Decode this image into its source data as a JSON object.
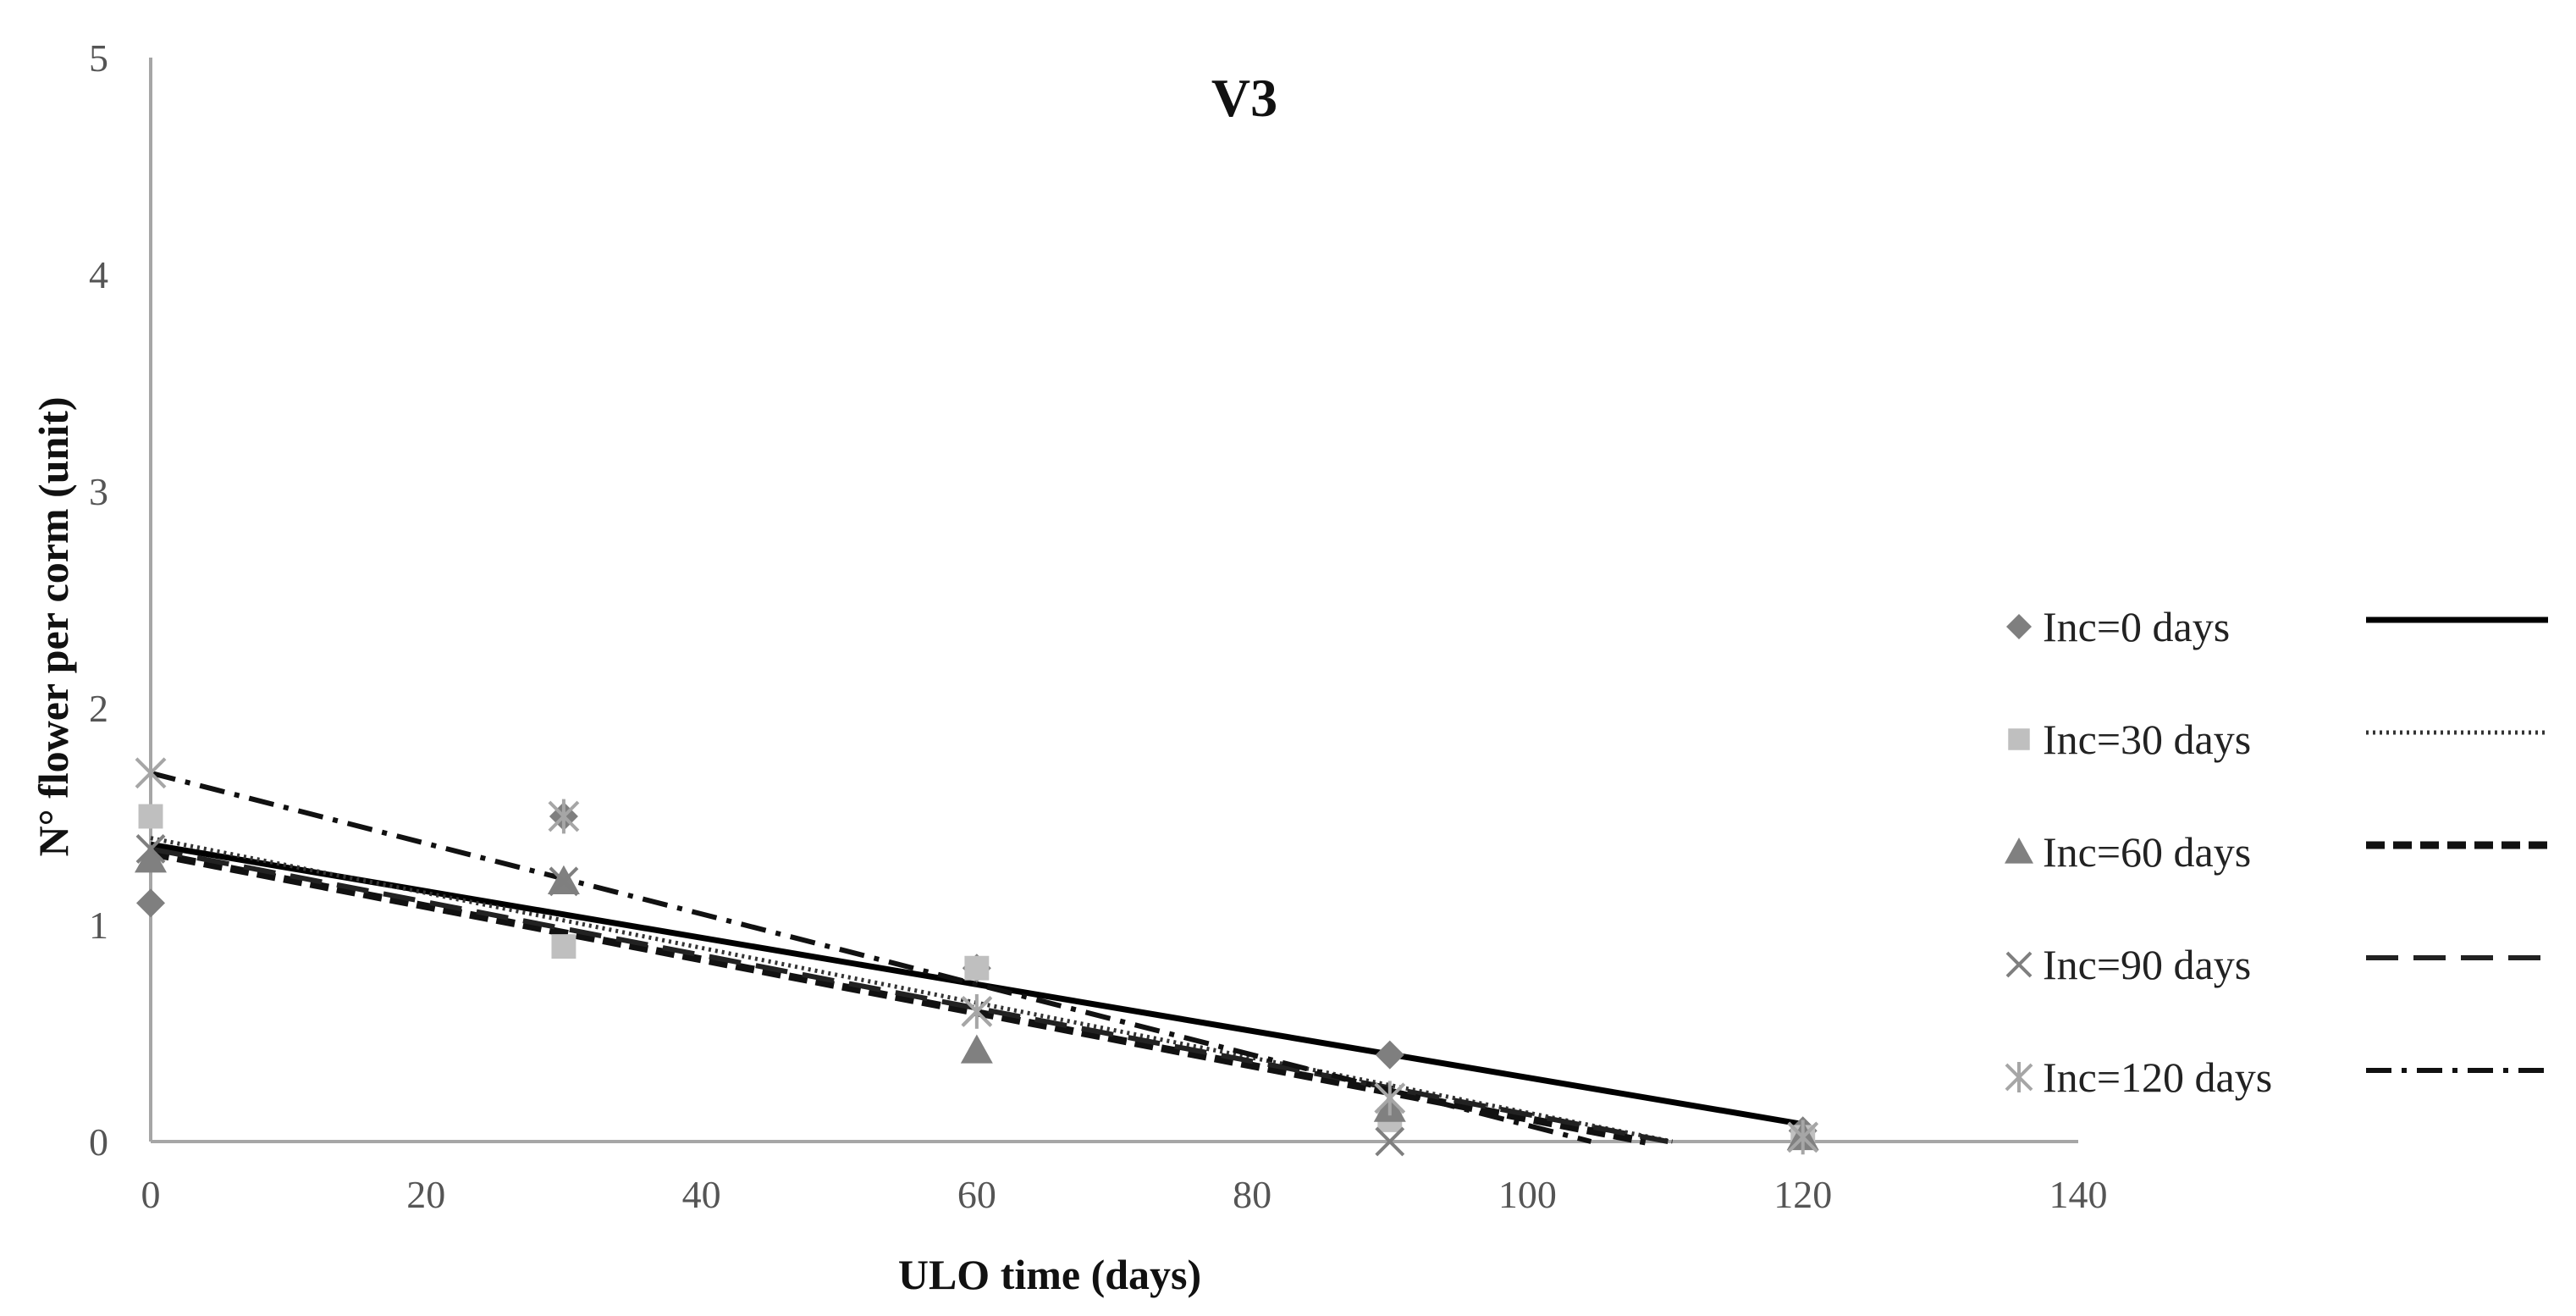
{
  "chart_data": {
    "type": "scatter",
    "title": "V3",
    "xlabel": "ULO time (days)",
    "ylabel": "N° flower per corm (unit)",
    "xlim": [
      0,
      140
    ],
    "ylim": [
      0,
      5
    ],
    "x_ticks": [
      "0",
      "20",
      "40",
      "60",
      "80",
      "100",
      "120",
      "140"
    ],
    "y_ticks": [
      "0",
      "1",
      "2",
      "3",
      "4",
      "5"
    ],
    "grid": false,
    "legend_position": "right",
    "x": [
      0,
      30,
      60,
      90,
      120
    ],
    "series": [
      {
        "name": "Inc=0 days",
        "marker": "diamond",
        "marker_color": "#7f7f7f",
        "line_style": "solid",
        "values": [
          1.1,
          1.5,
          0.8,
          0.4,
          0.05
        ],
        "trendline": [
          1.37,
          0.08
        ]
      },
      {
        "name": "Inc=30 days",
        "marker": "square",
        "marker_color": "#bfbfbf",
        "line_style": "dotted",
        "values": [
          1.5,
          0.9,
          0.8,
          0.1,
          0.02
        ],
        "trendline": [
          1.4,
          -0.12
        ]
      },
      {
        "name": "Inc=60 days",
        "marker": "triangle",
        "marker_color": "#808080",
        "line_style": "dashed-heavy",
        "values": [
          1.3,
          1.2,
          0.42,
          0.15,
          0.02
        ],
        "trendline": [
          1.33,
          -0.14
        ]
      },
      {
        "name": "Inc=90 days",
        "marker": "x",
        "marker_color": "#7f7f7f",
        "line_style": "dashed",
        "values": [
          1.35,
          1.2,
          0.6,
          0.0,
          0.02
        ],
        "trendline": [
          1.35,
          -0.12
        ]
      },
      {
        "name": "Inc=120 days",
        "marker": "star",
        "marker_color": "#a6a6a6",
        "line_style": "dash-dot",
        "values": [
          1.7,
          1.5,
          0.6,
          0.2,
          0.02
        ],
        "trendline": [
          1.7,
          -0.25
        ]
      }
    ]
  }
}
